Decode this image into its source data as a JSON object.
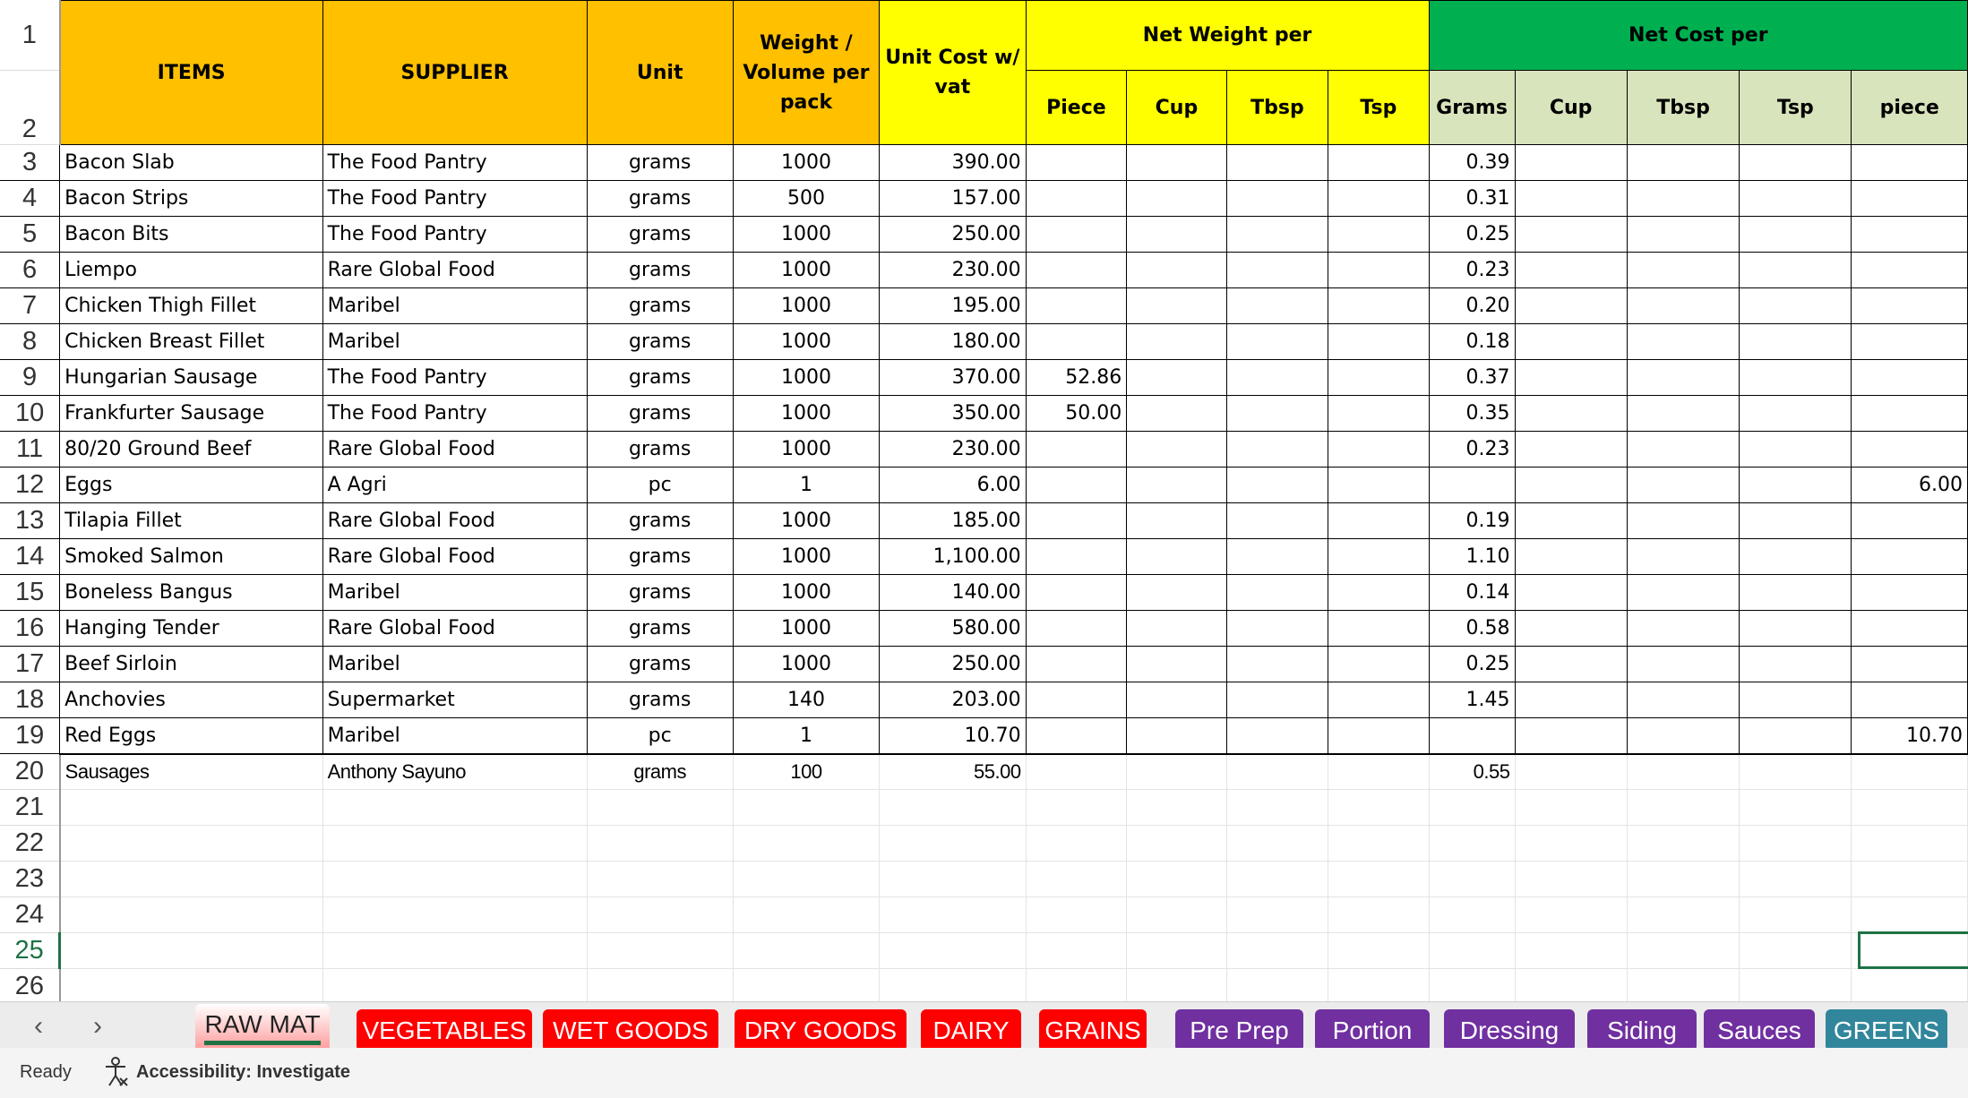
{
  "headers": {
    "items": "ITEMS",
    "supplier": "SUPPLIER",
    "unit": "Unit",
    "weight": "Weight / Volume per pack",
    "cost": "Unit Cost w/ vat",
    "net_weight": "Net Weight per",
    "net_cost": "Net Cost per",
    "nw_sub": [
      "Piece",
      "Cup",
      "Tbsp",
      "Tsp"
    ],
    "nc_sub": [
      "Grams",
      "Cup",
      "Tbsp",
      "Tsp",
      "piece"
    ]
  },
  "row_numbers": [
    "1",
    "2",
    "3",
    "4",
    "5",
    "6",
    "7",
    "8",
    "9",
    "10",
    "11",
    "12",
    "13",
    "14",
    "15",
    "16",
    "17",
    "18",
    "19",
    "20",
    "21",
    "22",
    "23",
    "24",
    "25",
    "26"
  ],
  "rows": [
    [
      "Bacon Slab",
      "The Food Pantry",
      "grams",
      "1000",
      "390.00",
      "",
      "0.39",
      ""
    ],
    [
      "Bacon Strips",
      "The Food Pantry",
      "grams",
      "500",
      "157.00",
      "",
      "0.31",
      ""
    ],
    [
      "Bacon Bits",
      "The Food Pantry",
      "grams",
      "1000",
      "250.00",
      "",
      "0.25",
      ""
    ],
    [
      "Liempo",
      "Rare Global Food",
      "grams",
      "1000",
      "230.00",
      "",
      "0.23",
      ""
    ],
    [
      "Chicken Thigh Fillet",
      "Maribel",
      "grams",
      "1000",
      "195.00",
      "",
      "0.20",
      ""
    ],
    [
      "Chicken Breast Fillet",
      "Maribel",
      "grams",
      "1000",
      "180.00",
      "",
      "0.18",
      ""
    ],
    [
      "Hungarian Sausage",
      "The Food Pantry",
      "grams",
      "1000",
      "370.00",
      "52.86",
      "0.37",
      ""
    ],
    [
      "Frankfurter Sausage",
      "The Food Pantry",
      "grams",
      "1000",
      "350.00",
      "50.00",
      "0.35",
      ""
    ],
    [
      "80/20 Ground Beef",
      "Rare Global Food",
      "grams",
      "1000",
      "230.00",
      "",
      "0.23",
      ""
    ],
    [
      "Eggs",
      "A Agri",
      "pc",
      "1",
      "6.00",
      "",
      "",
      "6.00"
    ],
    [
      "Tilapia Fillet",
      "Rare Global Food",
      "grams",
      "1000",
      "185.00",
      "",
      "0.19",
      ""
    ],
    [
      "Smoked Salmon",
      "Rare Global Food",
      "grams",
      "1000",
      "1,100.00",
      "",
      "1.10",
      ""
    ],
    [
      "Boneless Bangus",
      "Maribel",
      "grams",
      "1000",
      "140.00",
      "",
      "0.14",
      ""
    ],
    [
      "Hanging Tender",
      "Rare Global Food",
      "grams",
      "1000",
      "580.00",
      "",
      "0.58",
      ""
    ],
    [
      "Beef Sirloin",
      "Maribel",
      "grams",
      "1000",
      "250.00",
      "",
      "0.25",
      ""
    ],
    [
      "Anchovies",
      "Supermarket",
      "grams",
      "140",
      "203.00",
      "",
      "1.45",
      ""
    ],
    [
      "Red Eggs",
      "Maribel",
      "pc",
      "1",
      "10.70",
      "",
      "",
      "10.70"
    ],
    [
      "Sausages",
      "Anthony Sayuno",
      "grams",
      "100",
      "55.00",
      "",
      "0.55",
      ""
    ]
  ],
  "tabs": [
    {
      "label": "RAW MAT",
      "color": "#ff9a9a",
      "active": true
    },
    {
      "label": "VEGETABLES",
      "color": "#ff0000"
    },
    {
      "label": "WET GOODS",
      "color": "#ff0000"
    },
    {
      "label": "DRY GOODS",
      "color": "#ff0000"
    },
    {
      "label": "DAIRY",
      "color": "#ff0000"
    },
    {
      "label": "GRAINS",
      "color": "#ff0000"
    },
    {
      "label": "Pre Prep",
      "color": "#7030a0"
    },
    {
      "label": "Portion",
      "color": "#7030a0"
    },
    {
      "label": "Dressing",
      "color": "#7030a0"
    },
    {
      "label": "Siding",
      "color": "#7030a0"
    },
    {
      "label": "Sauces",
      "color": "#7030a0"
    },
    {
      "label": "GREENS",
      "color": "#31869b"
    }
  ],
  "nav": {
    "prev": "‹",
    "next": "›"
  },
  "status": {
    "ready": "Ready",
    "accessibility": "Accessibility: Investigate",
    "accessibility_icon": "accessibility-person-icon"
  }
}
